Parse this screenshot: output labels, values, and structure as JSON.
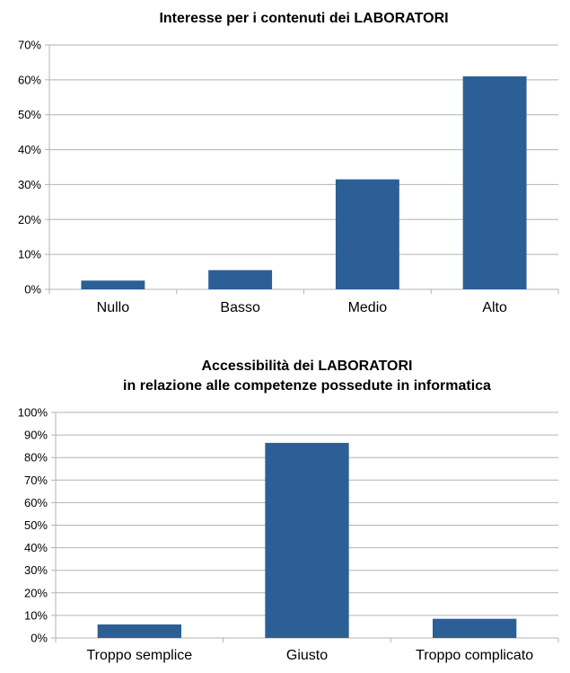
{
  "chart_data": [
    {
      "type": "bar",
      "title_lines": [
        "Interesse per i contenuti dei LABORATORI"
      ],
      "categories": [
        "Nullo",
        "Basso",
        "Medio",
        "Alto"
      ],
      "values": [
        2.5,
        5.5,
        31.5,
        61.0
      ],
      "ylim": [
        0,
        70
      ],
      "ytick_step": 10,
      "ytick_suffix": "%",
      "grid": true,
      "legend": "none",
      "bar_color": "#2c5f96"
    },
    {
      "type": "bar",
      "title_lines": [
        "Accessibilità dei LABORATORI",
        "in relazione alle competenze possedute in informatica"
      ],
      "categories": [
        "Troppo semplice",
        "Giusto",
        "Troppo complicato"
      ],
      "values": [
        6.0,
        86.5,
        8.5
      ],
      "ylim": [
        0,
        100
      ],
      "ytick_step": 10,
      "ytick_suffix": "%",
      "grid": true,
      "legend": "none",
      "bar_color": "#2c5f96"
    }
  ]
}
